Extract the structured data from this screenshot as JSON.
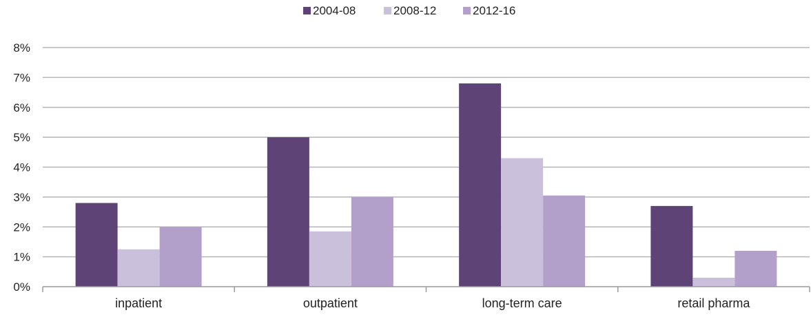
{
  "chart_data": {
    "type": "bar",
    "categories": [
      "inpatient",
      "outpatient",
      "long-term care",
      "retail pharma"
    ],
    "series": [
      {
        "name": "2004-08",
        "color": "#5e4476",
        "values": [
          2.8,
          5.0,
          6.8,
          2.7
        ]
      },
      {
        "name": "2008-12",
        "color": "#cbc0dc",
        "values": [
          1.25,
          1.85,
          4.3,
          0.3
        ]
      },
      {
        "name": "2012-16",
        "color": "#b2a0cb",
        "values": [
          2.0,
          3.0,
          3.05,
          1.2
        ]
      }
    ],
    "ylim": [
      0,
      8
    ],
    "yticks": [
      "0%",
      "1%",
      "2%",
      "3%",
      "4%",
      "5%",
      "6%",
      "7%",
      "8%"
    ],
    "xlabel": "",
    "ylabel": "",
    "grid": true,
    "legend_position": "top-center"
  }
}
